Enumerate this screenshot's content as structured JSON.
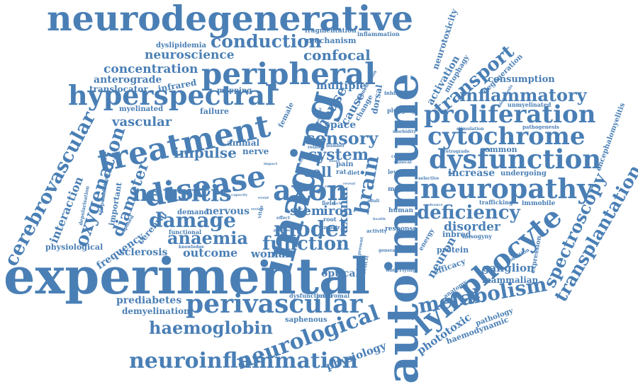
{
  "colors": {
    "background": "#ffffff",
    "word": "#4a7fb5"
  },
  "words": [
    "neurodegenerative",
    "experimental",
    "autoimmune",
    "imaging",
    "treatment",
    "peripheral",
    "disease",
    "hyperspectral",
    "neuropathy",
    "dysfunction",
    "proliferation",
    "cytochrome",
    "lymphocyte",
    "perivascular",
    "neuroinflammation",
    "neurological",
    "axon",
    "neuritis",
    "conduction",
    "cerebrovascular",
    "metabolism",
    "transplantation",
    "spectroscopy",
    "inflammatory",
    "deficiency",
    "damage",
    "model",
    "oxygenation",
    "function",
    "haemoglobin",
    "brain",
    "anaemia",
    "transport",
    "sensory",
    "system",
    "impulse",
    "concentration",
    "neuroscience",
    "confocal",
    "vascular",
    "anterograde",
    "interaction",
    "diameter",
    "cell",
    "stem",
    "iron",
    "outcome",
    "woman",
    "optical",
    "sclerosis",
    "physiology",
    "phototoxic",
    "prediabetes",
    "demyelination",
    "ganglion",
    "disorder",
    "mammalian",
    "increase",
    "common",
    "undergoing",
    "consumption",
    "mechanism",
    "fragmentation",
    "inflammation",
    "dyslipidemia",
    "translocator",
    "infrared",
    "mapping",
    "failure",
    "myelinated",
    "animal",
    "nerve",
    "nervous",
    "frequency",
    "cerebral",
    "physiological",
    "demand",
    "functional",
    "knowledge",
    "saphenous",
    "dysfunctional",
    "prodromal",
    "axonal",
    "multiple",
    "house",
    "cause",
    "change",
    "dorsal",
    "space",
    "plugging",
    "inhibition",
    "homeostasis",
    "female",
    "pain",
    "rat",
    "diet",
    "field",
    "root",
    "impair",
    "effect",
    "vitro",
    "level",
    "selective",
    "major",
    "human",
    "response",
    "activity",
    "deficit",
    "energy",
    "neuron",
    "inbred",
    "misogyny",
    "protein",
    "efficacy",
    "anatomy",
    "pathology",
    "haemodynamic",
    "condition",
    "expression",
    "encephalomyelitis",
    "immobile",
    "trafficking",
    "retrograde",
    "stimulation",
    "pathogenesis",
    "unmyelinated",
    "biogenesis",
    "neurotoxicity",
    "activation",
    "mitophagy",
    "degeneration",
    "depolarisation",
    "important",
    "population",
    "exposed",
    "anaesthesia",
    "underlying",
    "generalise",
    "present",
    "correlate",
    "clinical",
    "morbidity",
    "diabetic",
    "related",
    "number",
    "event",
    "capacity",
    "electrical",
    "impact",
    "adult",
    "result",
    "advance",
    "problem",
    "loss",
    "health",
    "traffic",
    "review",
    "onset",
    "lack",
    "reveal"
  ]
}
